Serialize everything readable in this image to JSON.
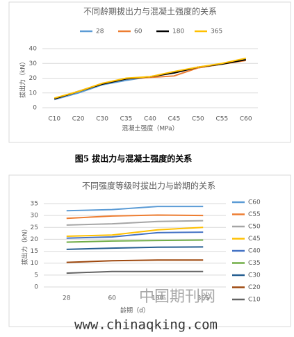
{
  "chart_data": [
    {
      "type": "line",
      "title": "不同龄期拔出力与混凝土强度的关系",
      "x_label": "混凝土强度（MPa）",
      "y_label": "拔出力（kN）",
      "categories": [
        "C10",
        "C20",
        "C30",
        "C35",
        "C40",
        "C45",
        "C50",
        "C55",
        "C60"
      ],
      "series": [
        {
          "name": "28",
          "color": "#5b9bd5",
          "values": [
            5.5,
            10,
            15.5,
            18.5,
            21,
            24,
            27,
            29.5,
            33
          ]
        },
        {
          "name": "60",
          "color": "#ed7d31",
          "values": [
            6,
            11,
            16.5,
            19.5,
            20.5,
            21.5,
            27,
            29.5,
            32
          ]
        },
        {
          "name": "180",
          "color": "#000000",
          "values": [
            6,
            11,
            16,
            19.5,
            21,
            23.5,
            27.5,
            29.5,
            32.5
          ]
        },
        {
          "name": "365",
          "color": "#ffc000",
          "values": [
            6.5,
            11,
            16.5,
            20,
            21,
            24.5,
            27.5,
            30,
            33.5
          ]
        }
      ],
      "ylim": [
        0,
        40
      ],
      "yticks": [
        0,
        10,
        20,
        30,
        40
      ],
      "grid": true,
      "legend": "top"
    },
    {
      "type": "line",
      "title": "不同强度等级时拔出力与龄期的关系",
      "x_label": "龄期（d）",
      "y_label": "拔出力（kN）",
      "categories": [
        "28",
        "60",
        "180",
        "365"
      ],
      "series": [
        {
          "name": "C60",
          "color": "#5b9bd5",
          "values": [
            32,
            32.5,
            33.8,
            33.8
          ]
        },
        {
          "name": "C55",
          "color": "#ed7d31",
          "values": [
            28.8,
            29.8,
            30.2,
            30
          ]
        },
        {
          "name": "C50",
          "color": "#a5a5a5",
          "values": [
            26,
            26.5,
            27.5,
            27.8
          ]
        },
        {
          "name": "C45",
          "color": "#ffc000",
          "values": [
            21.3,
            21.8,
            24,
            25
          ]
        },
        {
          "name": "C40",
          "color": "#4472c4",
          "values": [
            20.5,
            21,
            22.8,
            23
          ]
        },
        {
          "name": "C35",
          "color": "#70ad47",
          "values": [
            18.8,
            19.3,
            19.5,
            19.7
          ]
        },
        {
          "name": "C30",
          "color": "#255e91",
          "values": [
            15.8,
            16.3,
            16.7,
            16.8
          ]
        },
        {
          "name": "C20",
          "color": "#9e480e",
          "values": [
            10.3,
            11,
            11.3,
            11.3
          ]
        },
        {
          "name": "C10",
          "color": "#636363",
          "values": [
            5.8,
            6.5,
            6.5,
            6.5
          ]
        }
      ],
      "ylim": [
        0,
        35
      ],
      "yticks": [
        0,
        5,
        10,
        15,
        20,
        25,
        30,
        35
      ],
      "grid": true,
      "legend": "right"
    }
  ],
  "caption": "图5 拔出力与混凝土强度的关系",
  "watermarks": [
    "中国期刊网",
    "www.chinaqking.com"
  ]
}
